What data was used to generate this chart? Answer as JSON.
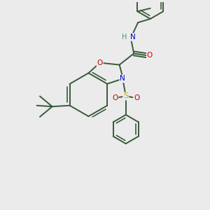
{
  "bg_color": "#ebebeb",
  "bond_color": "#3a5a3a",
  "atom_colors": {
    "O": "#cc0000",
    "N": "#0000cc",
    "S": "#ccaa00",
    "H": "#558888",
    "C": "#3a5a3a"
  },
  "line_width": 1.4
}
